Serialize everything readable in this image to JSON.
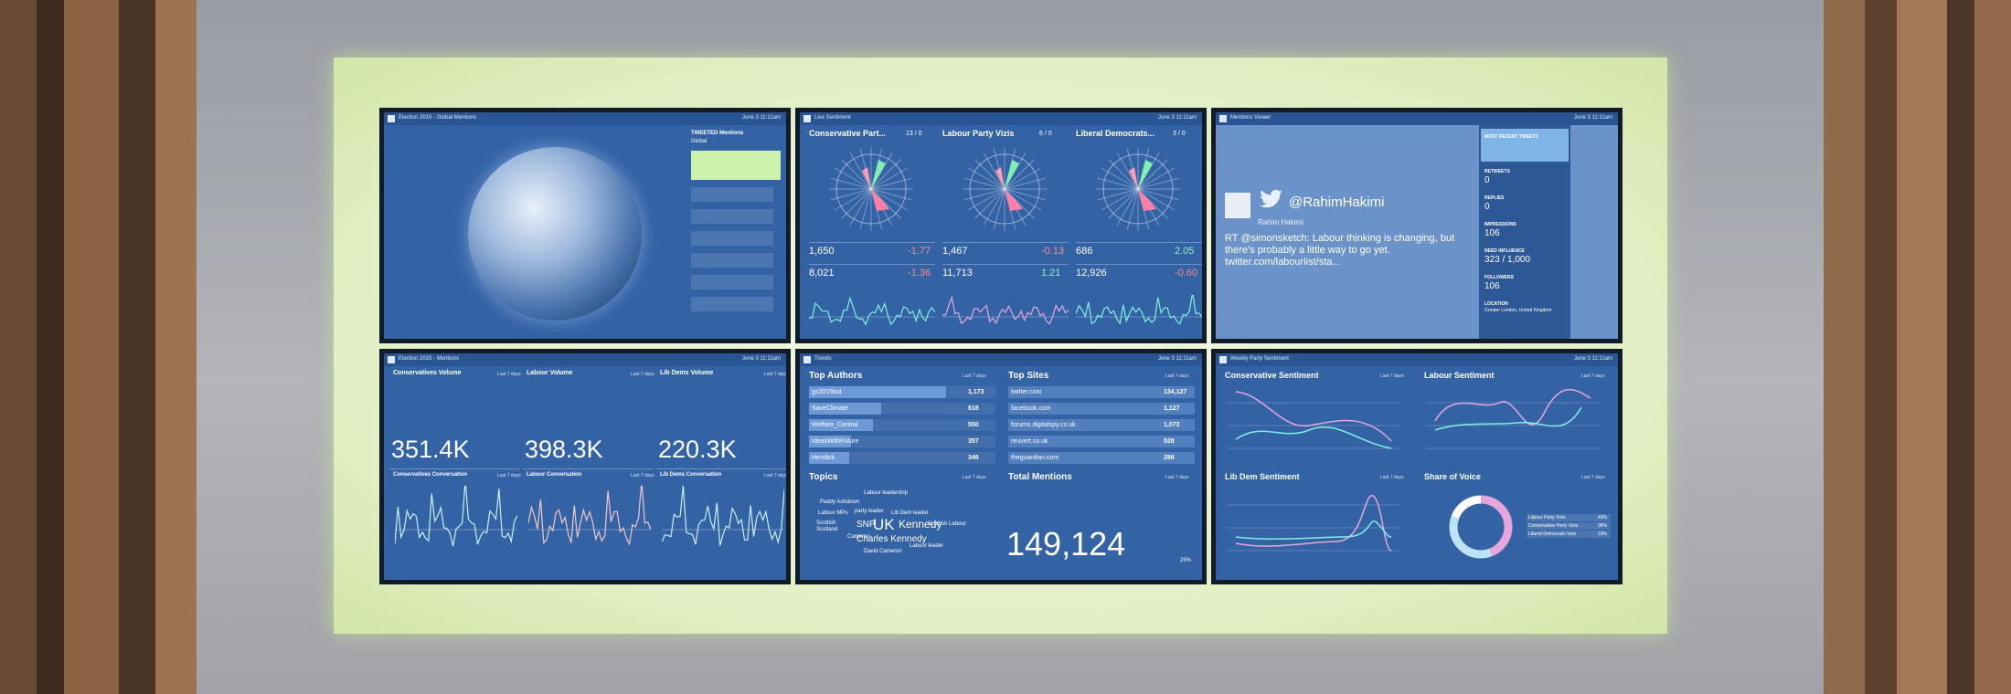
{
  "last7": "Last 7 days",
  "date": "June 3 11:11am",
  "global_mentions": {
    "title": "Election 2015 - Global Mentions",
    "side_title": "TWEETED Mentions",
    "side_subtitle": "Global"
  },
  "live_sentiment": {
    "title": "Live Sentiment",
    "parties": [
      {
        "name": "Conservative Part...",
        "count": "13 / 0",
        "rows": [
          {
            "value": "1,650",
            "change": "-1.77"
          },
          {
            "value": "8,021",
            "change": "-1.36"
          }
        ]
      },
      {
        "name": "Labour Party Vizis",
        "count": "6 / 0",
        "rows": [
          {
            "value": "1,467",
            "change": "-0.13"
          },
          {
            "value": "11,713",
            "change": "1.21"
          }
        ]
      },
      {
        "name": "Liberal Democrats...",
        "count": "3 / 0",
        "rows": [
          {
            "value": "686",
            "change": "2.05"
          },
          {
            "value": "12,926",
            "change": "-0.60"
          }
        ]
      }
    ]
  },
  "mentions_viewer": {
    "title": "Mentions Viewer",
    "handle": "@RahimHakimi",
    "name": "Rahim Hakimi",
    "text": "RT @simonsketch: Labour thinking is changing, but there's probably a little way to go yet. twitter.com/labourlist/sta...",
    "recent": "MOST RECENT TWEETS",
    "stats": [
      {
        "label": "RETWEETS",
        "value": "0"
      },
      {
        "label": "REPLIES",
        "value": "0"
      },
      {
        "label": "IMPRESSIONS",
        "value": "106"
      },
      {
        "label": "NEED INFLUENCE",
        "value": "323 / 1,000"
      },
      {
        "label": "FOLLOWERS",
        "value": "106"
      },
      {
        "label": "LOCATION",
        "value": "Greater London, United Kingdom"
      }
    ]
  },
  "mentions": {
    "title": "Election 2015 - Mentions",
    "volumes": [
      {
        "name": "Conservatives Volume",
        "value": "351.4K",
        "conversation": "Conservatives Conversation"
      },
      {
        "name": "Labour Volume",
        "value": "398.3K",
        "conversation": "Labour Conversation"
      },
      {
        "name": "Lib Dems Volume",
        "value": "220.3K",
        "conversation": "Lib Dems Conversation"
      }
    ]
  },
  "trends": {
    "title": "Trends",
    "top_authors": {
      "title": "Top Authors",
      "rows": [
        {
          "name": "gs2015bot",
          "value": 1173,
          "label": "1,173"
        },
        {
          "name": "SaveClimate",
          "value": 618,
          "label": "618"
        },
        {
          "name": "Welfare_Central",
          "value": 550,
          "label": "550"
        },
        {
          "name": "IdeasWithFuture",
          "value": 357,
          "label": "357"
        },
        {
          "name": "Hendick",
          "value": 346,
          "label": "346"
        }
      ]
    },
    "top_sites": {
      "title": "Top Sites",
      "rows": [
        {
          "name": "twitter.com",
          "label": "134,127"
        },
        {
          "name": "facebook.com",
          "label": "1,127"
        },
        {
          "name": "forums.digitalspy.co.uk",
          "label": "1,072"
        },
        {
          "name": "reuvert.co.uk",
          "label": "528"
        },
        {
          "name": "theguardian.com",
          "label": "286"
        }
      ]
    },
    "topics": {
      "title": "Topics",
      "words": [
        "Labour leadership",
        "Paddy Ashdown",
        "Labour MPs",
        "party leader",
        "Lib Dem leader",
        "Scottish",
        "Scotland",
        "SNP",
        "UK",
        "Kennedy",
        "Charles Kennedy",
        "Cameron",
        "Scottish Labour",
        "David Cameron",
        "Labour leader"
      ]
    },
    "total": {
      "title": "Total Mentions",
      "value": "149,124",
      "change": "25%"
    }
  },
  "party_sentiment": {
    "title": "Weekly Party Sentiment",
    "charts": [
      "Conservative Sentiment",
      "Labour Sentiment",
      "Lib Dem Sentiment"
    ],
    "share_of_voice": {
      "title": "Share of Voice",
      "series": [
        {
          "name": "Labour Party Vizis",
          "value": 43,
          "label": "43%",
          "color": "#e6a6dc"
        },
        {
          "name": "Conservative Party Vizis",
          "value": 36,
          "label": "36%",
          "color": "#bfe3f6"
        },
        {
          "name": "Liberal Democrats Vizis",
          "value": 19,
          "label": "19%",
          "color": "#ffffff"
        }
      ]
    }
  }
}
